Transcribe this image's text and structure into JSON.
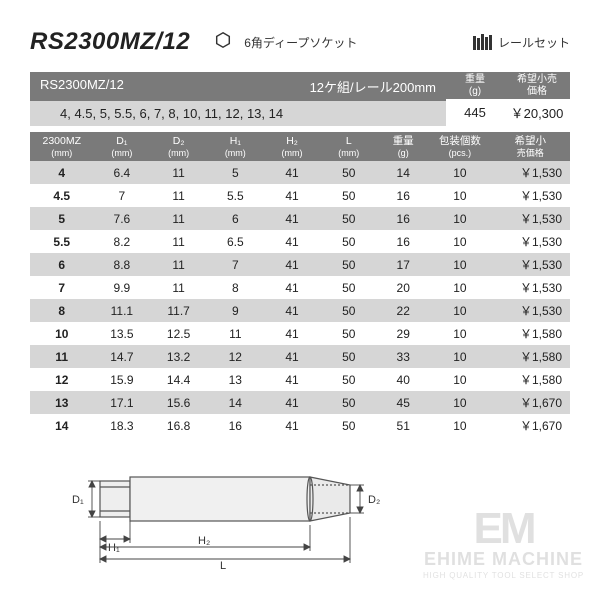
{
  "header": {
    "title": "RS2300MZ/12",
    "subtitle": "6角ディープソケット",
    "rail_label": "レールセット"
  },
  "set": {
    "model": "RS2300MZ/12",
    "spec": "12ケ組/レール200mm",
    "sizes": "4, 4.5, 5, 5.5, 6, 7, 8, 10, 11, 12, 13, 14",
    "weight_head1": "重量",
    "weight_head2": "(g)",
    "weight_val": "445",
    "price_head1": "希望小売",
    "price_head2": "価格",
    "price_val": "￥20,300"
  },
  "table": {
    "headers": {
      "size": "2300MZ",
      "size_u": "(mm)",
      "d1": "D₁",
      "d1_u": "(mm)",
      "d2": "D₂",
      "d2_u": "(mm)",
      "h1": "H₁",
      "h1_u": "(mm)",
      "h2": "H₂",
      "h2_u": "(mm)",
      "l": "L",
      "l_u": "(mm)",
      "w": "重量",
      "w_u": "(g)",
      "pk": "包装個数",
      "pk_u": "(pcs.)",
      "pr": "希望小",
      "pr_u": "売価格"
    },
    "col_widths": [
      "56",
      "50",
      "50",
      "50",
      "50",
      "50",
      "46",
      "54",
      "70"
    ],
    "rows": [
      {
        "sz": "4",
        "d1": "6.4",
        "d2": "11",
        "h1": "5",
        "h2": "41",
        "l": "50",
        "w": "14",
        "pk": "10",
        "pr": "￥1,530"
      },
      {
        "sz": "4.5",
        "d1": "7",
        "d2": "11",
        "h1": "5.5",
        "h2": "41",
        "l": "50",
        "w": "16",
        "pk": "10",
        "pr": "￥1,530"
      },
      {
        "sz": "5",
        "d1": "7.6",
        "d2": "11",
        "h1": "6",
        "h2": "41",
        "l": "50",
        "w": "16",
        "pk": "10",
        "pr": "￥1,530"
      },
      {
        "sz": "5.5",
        "d1": "8.2",
        "d2": "11",
        "h1": "6.5",
        "h2": "41",
        "l": "50",
        "w": "16",
        "pk": "10",
        "pr": "￥1,530"
      },
      {
        "sz": "6",
        "d1": "8.8",
        "d2": "11",
        "h1": "7",
        "h2": "41",
        "l": "50",
        "w": "17",
        "pk": "10",
        "pr": "￥1,530"
      },
      {
        "sz": "7",
        "d1": "9.9",
        "d2": "11",
        "h1": "8",
        "h2": "41",
        "l": "50",
        "w": "20",
        "pk": "10",
        "pr": "￥1,530"
      },
      {
        "sz": "8",
        "d1": "11.1",
        "d2": "11.7",
        "h1": "9",
        "h2": "41",
        "l": "50",
        "w": "22",
        "pk": "10",
        "pr": "￥1,530"
      },
      {
        "sz": "10",
        "d1": "13.5",
        "d2": "12.5",
        "h1": "11",
        "h2": "41",
        "l": "50",
        "w": "29",
        "pk": "10",
        "pr": "￥1,580"
      },
      {
        "sz": "11",
        "d1": "14.7",
        "d2": "13.2",
        "h1": "12",
        "h2": "41",
        "l": "50",
        "w": "33",
        "pk": "10",
        "pr": "￥1,580"
      },
      {
        "sz": "12",
        "d1": "15.9",
        "d2": "14.4",
        "h1": "13",
        "h2": "41",
        "l": "50",
        "w": "40",
        "pk": "10",
        "pr": "￥1,580"
      },
      {
        "sz": "13",
        "d1": "17.1",
        "d2": "15.6",
        "h1": "14",
        "h2": "41",
        "l": "50",
        "w": "45",
        "pk": "10",
        "pr": "￥1,670"
      },
      {
        "sz": "14",
        "d1": "18.3",
        "d2": "16.8",
        "h1": "16",
        "h2": "41",
        "l": "50",
        "w": "51",
        "pk": "10",
        "pr": "￥1,670"
      }
    ]
  },
  "diagram": {
    "labels": {
      "d1": "D₁",
      "d2": "D₂",
      "h1": "H₁",
      "h2": "H₂",
      "l": "L"
    }
  },
  "watermark": {
    "logo": "EM",
    "name": "EHIME MACHINE",
    "tag": "HIGH QUALITY TOOL SELECT SHOP"
  }
}
